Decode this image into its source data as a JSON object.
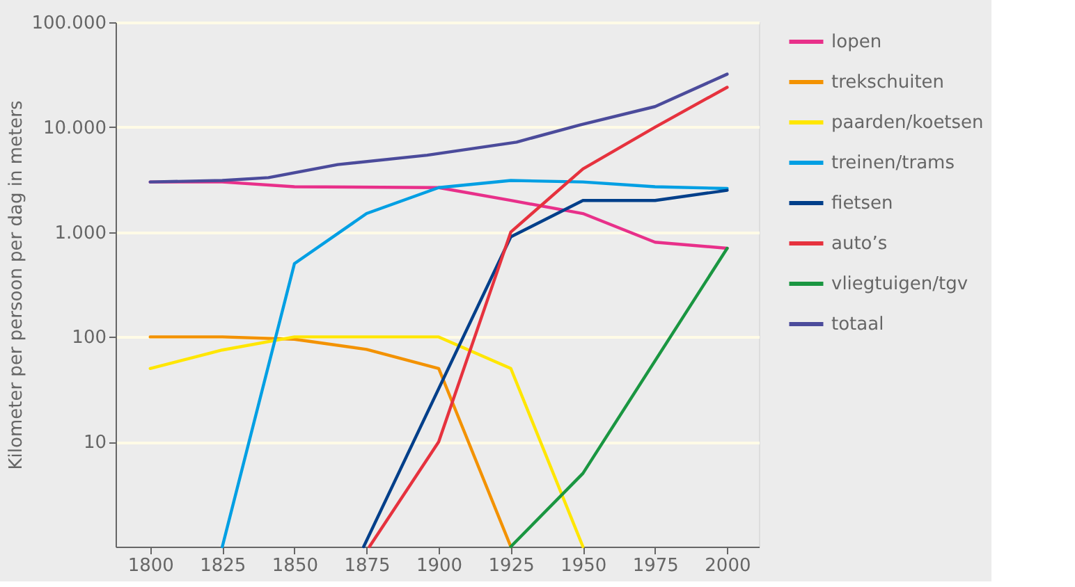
{
  "chart_data": {
    "type": "line",
    "ylabel": "Kilometer per persoon per dag in meters",
    "log": true,
    "grid": "y",
    "legend": "right",
    "line_style": "solid",
    "xlim": [
      1788,
      2011
    ],
    "xticks": [
      1800,
      1825,
      1850,
      1875,
      1900,
      1925,
      1950,
      1975,
      2000
    ],
    "ylim": [
      1,
      100000
    ],
    "yticks": [
      10,
      100,
      {
        "value": 1000,
        "label": "1.000"
      },
      {
        "value": 10000,
        "label": "10.000"
      },
      {
        "value": 100000,
        "label": "100.000"
      }
    ],
    "series": [
      {
        "name": "lopen",
        "color": "#e8308a",
        "x": [
          1800,
          1825,
          1850,
          1900,
          1925,
          1950,
          1975,
          2000
        ],
        "values": [
          3000,
          3000,
          2700,
          2650,
          2000,
          1500,
          800,
          700
        ]
      },
      {
        "name": "trekschuiten",
        "color": "#f39200",
        "x": [
          1800,
          1825,
          1850,
          1875,
          1900,
          1925
        ],
        "values": [
          100,
          100,
          95,
          76,
          50,
          1
        ]
      },
      {
        "name": "paarden/koetsen",
        "color": "#ffe600",
        "x": [
          1800,
          1825,
          1850,
          1900,
          1925,
          1950
        ],
        "values": [
          50,
          75,
          100,
          100,
          50,
          1
        ]
      },
      {
        "name": "treinen/trams",
        "color": "#009fe3",
        "x": [
          1825,
          1850,
          1875,
          1900,
          1925,
          1950,
          1975,
          2000
        ],
        "values": [
          1,
          500,
          1500,
          2650,
          3100,
          3000,
          2700,
          2600
        ]
      },
      {
        "name": "fietsen",
        "color": "#003f8a",
        "x": [
          1874,
          1925,
          1950,
          1975,
          2000
        ],
        "values": [
          1,
          900,
          2000,
          2000,
          2500
        ]
      },
      {
        "name": "auto’s",
        "color": "#e6323e",
        "x": [
          1876,
          1900,
          1925,
          1950,
          1975,
          2000
        ],
        "values": [
          1,
          10,
          1000,
          4000,
          10000,
          24000
        ]
      },
      {
        "name": "vliegtuigen/tgv",
        "color": "#1a9641",
        "x": [
          1925,
          1950,
          2000
        ],
        "values": [
          1,
          5,
          700
        ]
      },
      {
        "name": "totaal",
        "color": "#4b4b9b",
        "x": [
          1800,
          1825,
          1841,
          1865,
          1896,
          1927,
          1949,
          1975,
          2000
        ],
        "values": [
          3000,
          3100,
          3300,
          4400,
          5400,
          7200,
          10500,
          15700,
          32000
        ]
      }
    ]
  }
}
